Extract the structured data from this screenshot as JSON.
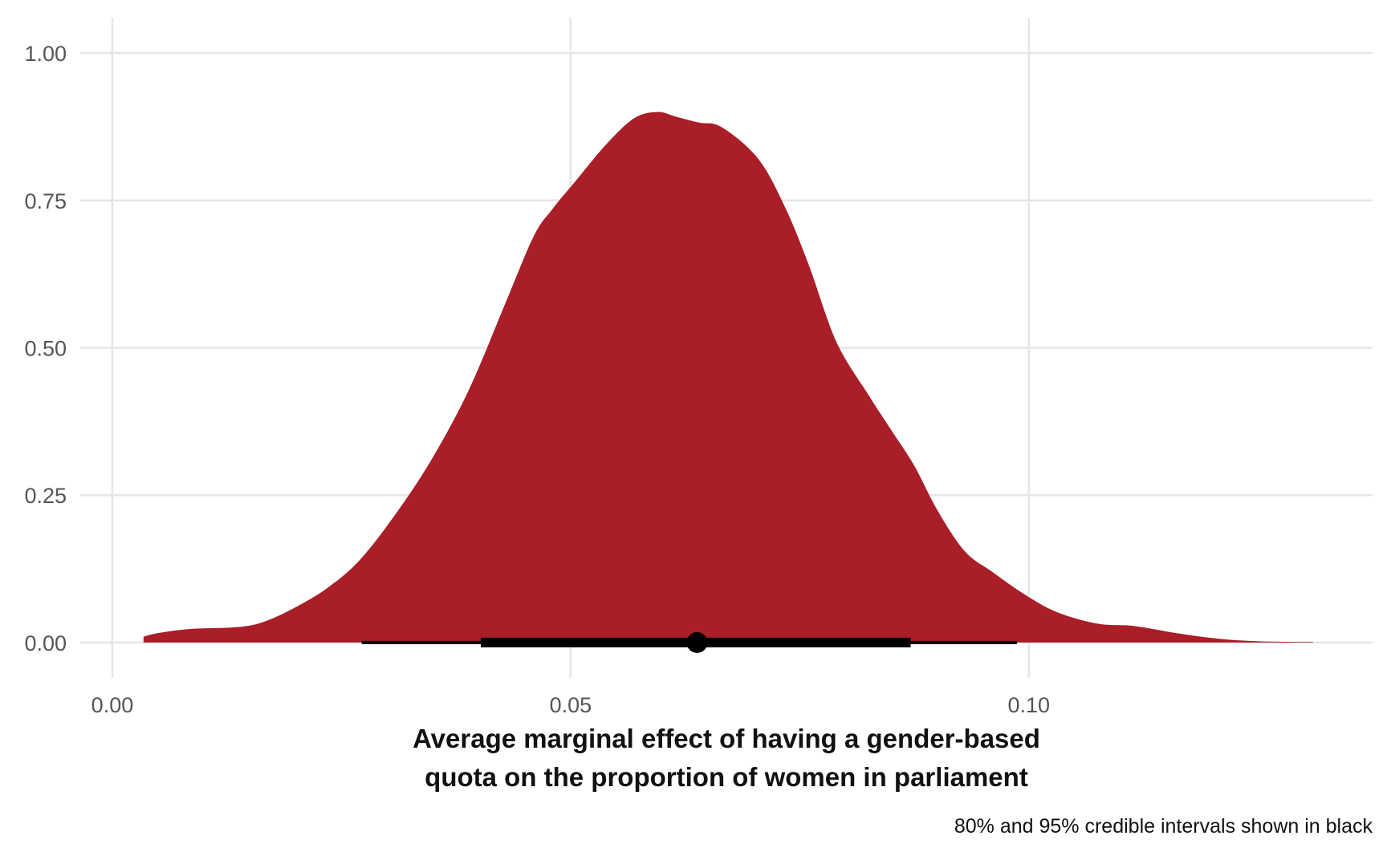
{
  "chart_data": {
    "type": "area",
    "title": "",
    "xlabel_lines": [
      "Average marginal effect of having a gender-based",
      "quota on the proportion of women in parliament"
    ],
    "ylabel": "",
    "caption": "80% and 95% credible intervals shown in black",
    "xlim": [
      -0.0035,
      0.1375
    ],
    "ylim": [
      -0.06,
      1.06
    ],
    "x_ticks": [
      0.0,
      0.05,
      0.1
    ],
    "x_tick_labels": [
      "0.00",
      "0.05",
      "0.10"
    ],
    "y_ticks": [
      0.0,
      0.25,
      0.5,
      0.75,
      1.0
    ],
    "y_tick_labels": [
      "0.00",
      "0.25",
      "0.50",
      "0.75",
      "1.00"
    ],
    "grid": true,
    "colors": {
      "density_fill": "#a91e27",
      "interval": "#000000",
      "grid": "#e6e6e6"
    },
    "density": {
      "x": [
        0.0034,
        0.005,
        0.0085,
        0.0135,
        0.0165,
        0.02,
        0.0235,
        0.027,
        0.031,
        0.035,
        0.039,
        0.043,
        0.046,
        0.048,
        0.0505,
        0.054,
        0.057,
        0.0595,
        0.0615,
        0.064,
        0.0665,
        0.0705,
        0.0735,
        0.076,
        0.079,
        0.0825,
        0.085,
        0.0875,
        0.09,
        0.093,
        0.096,
        0.0995,
        0.103,
        0.1075,
        0.1115,
        0.1165,
        0.121,
        0.1255,
        0.131
      ],
      "y": [
        0.01,
        0.016,
        0.023,
        0.026,
        0.035,
        0.06,
        0.093,
        0.14,
        0.22,
        0.315,
        0.432,
        0.58,
        0.69,
        0.735,
        0.782,
        0.847,
        0.89,
        0.9,
        0.892,
        0.882,
        0.874,
        0.82,
        0.735,
        0.64,
        0.51,
        0.42,
        0.36,
        0.3,
        0.225,
        0.155,
        0.12,
        0.082,
        0.052,
        0.032,
        0.028,
        0.015,
        0.006,
        0.002,
        0.001
      ]
    },
    "point_estimate": 0.0638,
    "interval_80": [
      0.0402,
      0.0871
    ],
    "interval_95": [
      0.0272,
      0.0987
    ]
  }
}
